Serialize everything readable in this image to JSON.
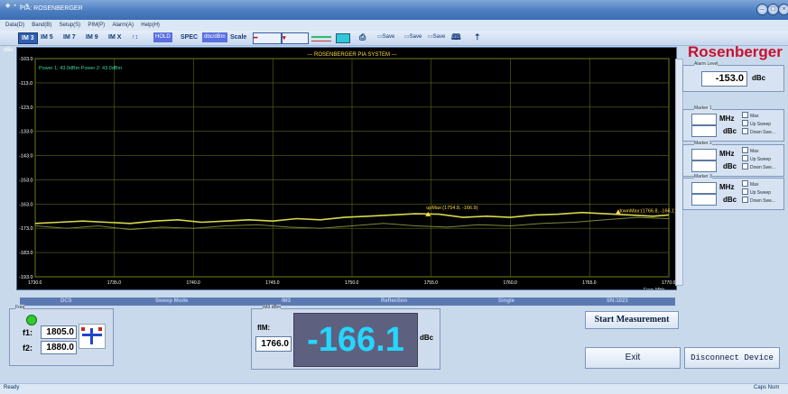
{
  "window": {
    "title": "PIA: ROSENBERGER",
    "controls": [
      "minimize-icon",
      "maximize-icon",
      "close-icon"
    ]
  },
  "menu": [
    "Data(D)",
    "Band(B)",
    "Setup(S)",
    "PIM(P)",
    "Alarm(A)",
    "Help(H)"
  ],
  "toolbar": {
    "modes": [
      "IM 3",
      "IM 5",
      "IM 7",
      "IM 9",
      "IM X"
    ],
    "active_mode": "IM 3",
    "arrows": "↑↕",
    "btn_hold": "HOLD",
    "spec_label": "SPEC",
    "dbc_btn": "dbc/dBm",
    "scale_label": "Scale",
    "icons": [
      "print-icon",
      "dbc-file-icon",
      "csv-file-icon",
      "bmp-file-icon",
      "book-icon",
      "pin-icon"
    ],
    "file_labels": [
      "Save",
      "Save",
      "Save"
    ]
  },
  "chart_data": {
    "type": "line",
    "title": "--- ROSENBERGER PIA SYSTEM ---",
    "ylabel": "dBc",
    "xlabel": "Freq: MHz",
    "ylim": [
      -193,
      -103
    ],
    "xlim": [
      1730,
      1770
    ],
    "yticks": [
      "-103.0",
      "-113.0",
      "-123.0",
      "-133.0",
      "-143.0",
      "-153.0",
      "-163.0",
      "-173.0",
      "-183.0",
      "-193.0"
    ],
    "xticks": [
      "1730.0",
      "1735.0",
      "1740.0",
      "1745.0",
      "1750.0",
      "1755.0",
      "1760.0",
      "1765.0",
      "1770.0"
    ],
    "power_readout": "Power 1: 43.0dBm  Power 2: 43.0dBm",
    "series": [
      {
        "color": "#d8d84a",
        "x": [
          1730,
          1731.5,
          1733,
          1734.5,
          1736,
          1737.5,
          1739,
          1740.5,
          1742,
          1743.5,
          1745,
          1746.5,
          1748,
          1749.5,
          1751,
          1752.5,
          1754,
          1755.5,
          1757,
          1758.5,
          1760,
          1761.5,
          1763,
          1764.5,
          1766,
          1767.5,
          1769,
          1770
        ],
        "y": [
          -171,
          -170.5,
          -170,
          -170.5,
          -171,
          -170,
          -169.5,
          -170.5,
          -170,
          -169.5,
          -170,
          -169,
          -169.5,
          -168.5,
          -168,
          -167.5,
          -167,
          -167.2,
          -168.5,
          -168,
          -168.5,
          -167.5,
          -167.2,
          -166.5,
          -167,
          -167.5,
          -168,
          -167.5
        ]
      },
      {
        "color": "#7a8a3a",
        "x": [
          1730,
          1732,
          1734,
          1736,
          1738,
          1740,
          1742,
          1744,
          1746,
          1748,
          1750,
          1752,
          1754,
          1756,
          1758,
          1760,
          1762,
          1764,
          1766,
          1768,
          1770
        ],
        "y": [
          -172,
          -173,
          -172,
          -173.5,
          -172.5,
          -173,
          -172,
          -171.5,
          -172.5,
          -173,
          -172,
          -171,
          -172,
          -172.5,
          -171.5,
          -172,
          -171,
          -170.5,
          -169.5,
          -168.5,
          -169
        ]
      }
    ],
    "annotations": [
      {
        "text": "upMax:(1754.8, -166.9)",
        "x": 1754.8,
        "y": -166.9
      },
      {
        "text": "downMax:(1766.8, -166.1)",
        "x": 1766.8,
        "y": -166.1
      }
    ]
  },
  "right_panel": {
    "brand": "Rosenberger",
    "alarm_level": {
      "label": "Alarm Level",
      "value": "-153.0",
      "unit": "dBc"
    },
    "markers": [
      {
        "label": "Marker 1",
        "mhz_unit": "MHz",
        "dbc_unit": "dBc",
        "options": [
          "Max",
          "Up Sweep",
          "Down Swe..."
        ]
      },
      {
        "label": "Marker 2",
        "mhz_unit": "MHz",
        "dbc_unit": "dBc",
        "options": [
          "Max",
          "Up Sweep",
          "Down Swe..."
        ]
      },
      {
        "label": "Marker 3",
        "mhz_unit": "MHz",
        "dbc_unit": "dBc",
        "options": [
          "Max",
          "Up Sweep",
          "Down Swe..."
        ]
      }
    ]
  },
  "status_strip": [
    "DCS",
    "Sweep Mode",
    "IM3",
    "Reflection",
    "Single",
    "SN:1023"
  ],
  "freq_panel": {
    "label": "Freq",
    "f1_label": "f1:",
    "f1_value": "1805.0",
    "f2_label": "f2:",
    "f2_value": "1880.0",
    "indicator_color": "#2ecc2e"
  },
  "result_panel": {
    "label": "IM3 dBm",
    "fim_label": "fIM:",
    "fim_value": "1766.0",
    "big_value": "-166.1",
    "big_unit": "dBc"
  },
  "buttons": {
    "start": "Start Measurement",
    "exit": "Exit",
    "disconnect": "Disconnect Device"
  },
  "statusbar": {
    "left": "Ready",
    "right": "Caps Num"
  }
}
